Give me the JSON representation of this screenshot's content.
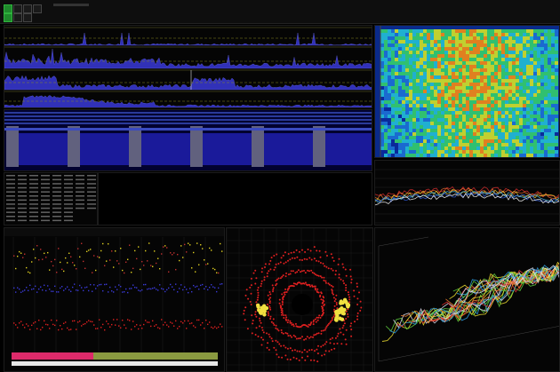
{
  "toolbar": {
    "menu_title": "",
    "buttons": [
      "green-square",
      "grid",
      "cursor",
      "zoom",
      "save"
    ]
  },
  "colors": {
    "background": "#000000",
    "trace_blue": "#3a3ad8",
    "trace_yellow": "#e0d020",
    "trace_red": "#e02020",
    "grid": "#2a2a2a",
    "accent_green": "#1f8a2c"
  },
  "icons": [
    "square-icon",
    "grid-icon",
    "cursor-icon",
    "zoom-icon",
    "save-icon"
  ]
}
